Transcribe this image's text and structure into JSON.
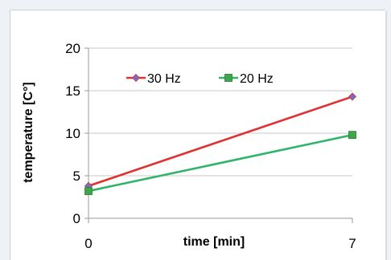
{
  "chart_data": {
    "type": "line",
    "title": "",
    "xlabel": "time [min]",
    "ylabel": "temperature [C°]",
    "x": [
      0,
      7
    ],
    "x_ticks": [
      "0",
      "7"
    ],
    "y_ticks": [
      "0",
      "5",
      "10",
      "15",
      "20"
    ],
    "ylim": [
      0,
      20
    ],
    "grid": "horizontal",
    "legend_position": "top-inside",
    "series": [
      {
        "name": "30 Hz",
        "values": [
          3.8,
          14.3
        ],
        "color": "#e03030",
        "marker": "diamond",
        "marker_color": "#7070c8"
      },
      {
        "name": "20 Hz",
        "values": [
          3.2,
          9.8
        ],
        "color": "#2fb56b",
        "marker": "square",
        "marker_color": "#3da64a"
      }
    ]
  }
}
